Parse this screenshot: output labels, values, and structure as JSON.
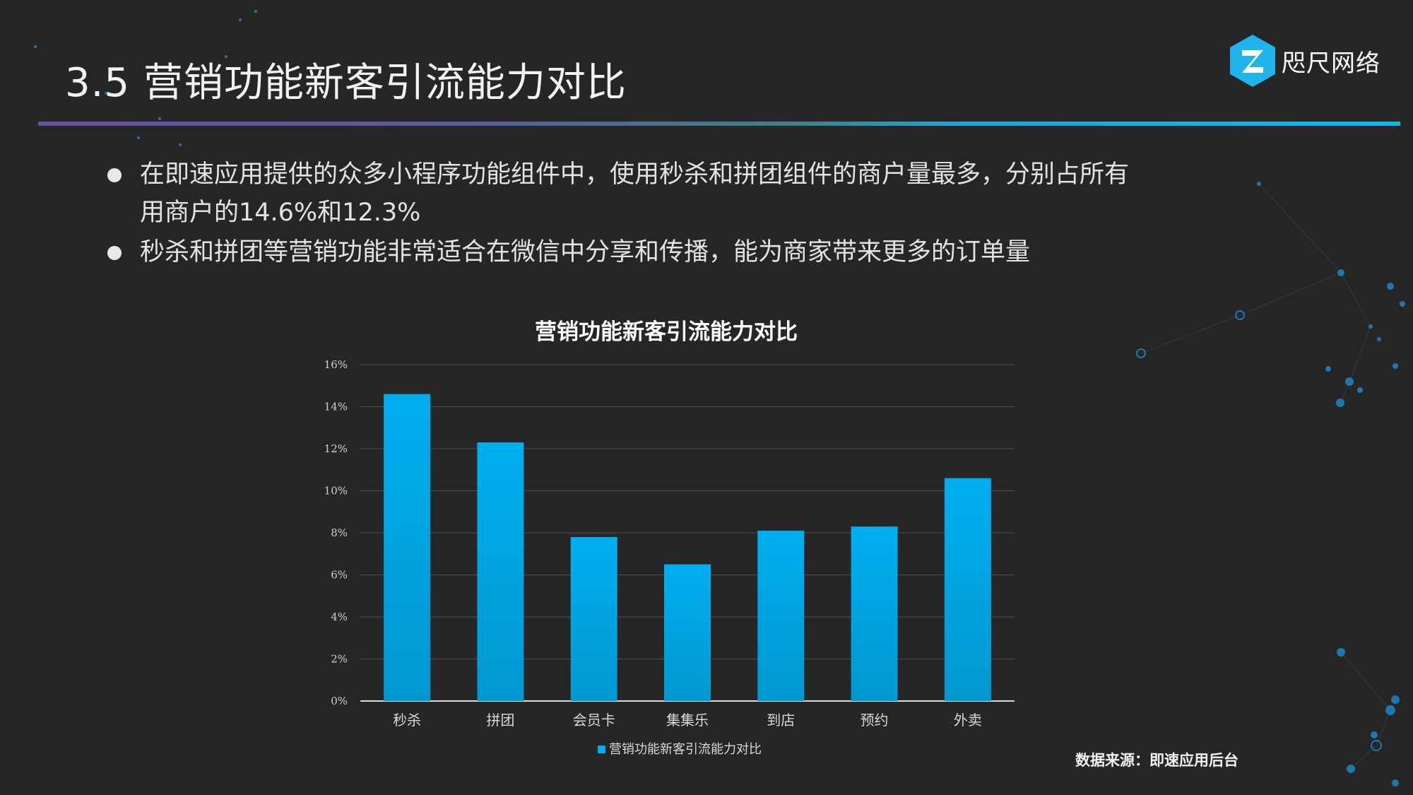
{
  "slide": {
    "title": "3.5 营销功能新客引流能力对比",
    "logo_text": "咫尺网络",
    "bullets": [
      "在即速应用提供的众多小程序功能组件中，使用秒杀和拼团组件的商户量最多，分别占所有用商户的14.6%和12.3%",
      "秒杀和拼团等营销功能非常适合在微信中分享和传播，能为商家带来更多的订单量"
    ],
    "source": "数据来源：即速应用后台"
  },
  "colors": {
    "background": "#262626",
    "bar_top": "#00aef0",
    "bar_bottom": "#0096cc",
    "grid": "#505050",
    "axis": "#d9d9d9",
    "logo": "#1fb4ec"
  },
  "icons": {
    "logo": "hexagon-z-logo-icon",
    "bullet": "bullet-dot-icon"
  },
  "chart_data": {
    "type": "bar",
    "title": "营销功能新客引流能力对比",
    "categories": [
      "秒杀",
      "拼团",
      "会员卡",
      "集集乐",
      "到店",
      "预约",
      "外卖"
    ],
    "series": [
      {
        "name": "营销功能新客引流能力对比",
        "values": [
          14.6,
          12.3,
          7.8,
          6.5,
          8.1,
          8.3,
          10.6
        ]
      }
    ],
    "y_ticks": [
      "0%",
      "2%",
      "4%",
      "6%",
      "8%",
      "10%",
      "12%",
      "14%",
      "16%"
    ],
    "ylim": [
      0,
      16
    ],
    "grid": true,
    "legend_position": "bottom"
  }
}
